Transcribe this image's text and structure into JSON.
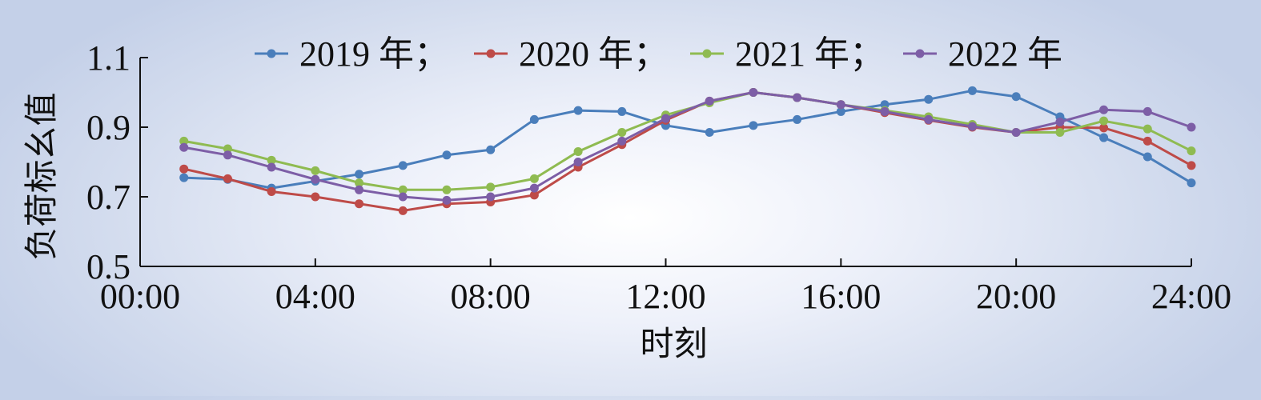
{
  "chart_data": {
    "type": "line",
    "title": "",
    "xlabel": "时刻",
    "ylabel": "负荷标幺值",
    "xlim": [
      0,
      24
    ],
    "ylim": [
      0.5,
      1.1
    ],
    "x_ticks": [
      {
        "value": 0,
        "label": "00:00"
      },
      {
        "value": 4,
        "label": "04:00"
      },
      {
        "value": 8,
        "label": "08:00"
      },
      {
        "value": 12,
        "label": "12:00"
      },
      {
        "value": 16,
        "label": "16:00"
      },
      {
        "value": 20,
        "label": "20:00"
      },
      {
        "value": 24,
        "label": "24:00"
      }
    ],
    "y_ticks": [
      {
        "value": 0.5,
        "label": "0.5"
      },
      {
        "value": 0.7,
        "label": "0.7"
      },
      {
        "value": 0.9,
        "label": "0.9"
      },
      {
        "value": 1.1,
        "label": "1.1"
      }
    ],
    "grid": false,
    "legend_position": "top",
    "x": [
      1,
      2,
      3,
      4,
      5,
      6,
      7,
      8,
      9,
      10,
      11,
      12,
      13,
      14,
      15,
      16,
      17,
      18,
      19,
      20,
      21,
      22,
      23,
      24
    ],
    "series": [
      {
        "name": "2019 年；",
        "color": "#4a7ebb",
        "values": [
          0.755,
          0.75,
          0.725,
          0.745,
          0.765,
          0.79,
          0.82,
          0.835,
          0.922,
          0.948,
          0.945,
          0.905,
          0.885,
          0.905,
          0.922,
          0.945,
          0.965,
          0.98,
          1.005,
          0.988,
          0.93,
          0.87,
          0.815,
          0.74
        ]
      },
      {
        "name": "2020 年；",
        "color": "#be4b48",
        "values": [
          0.78,
          0.752,
          0.715,
          0.7,
          0.68,
          0.66,
          0.68,
          0.685,
          0.705,
          0.785,
          0.85,
          0.92,
          0.975,
          1.0,
          0.985,
          0.965,
          0.942,
          0.92,
          0.9,
          0.885,
          0.9,
          0.898,
          0.86,
          0.79
        ]
      },
      {
        "name": "2021 年；",
        "color": "#8fbb51",
        "values": [
          0.86,
          0.838,
          0.805,
          0.775,
          0.74,
          0.72,
          0.72,
          0.728,
          0.752,
          0.83,
          0.885,
          0.935,
          0.97,
          1.0,
          0.985,
          0.965,
          0.948,
          0.93,
          0.908,
          0.885,
          0.885,
          0.918,
          0.895,
          0.832
        ]
      },
      {
        "name": "2022 年",
        "color": "#7d5ea6",
        "values": [
          0.842,
          0.82,
          0.785,
          0.75,
          0.72,
          0.7,
          0.69,
          0.7,
          0.725,
          0.8,
          0.86,
          0.925,
          0.975,
          1.0,
          0.985,
          0.965,
          0.945,
          0.922,
          0.902,
          0.885,
          0.915,
          0.95,
          0.945,
          0.9
        ]
      }
    ]
  }
}
